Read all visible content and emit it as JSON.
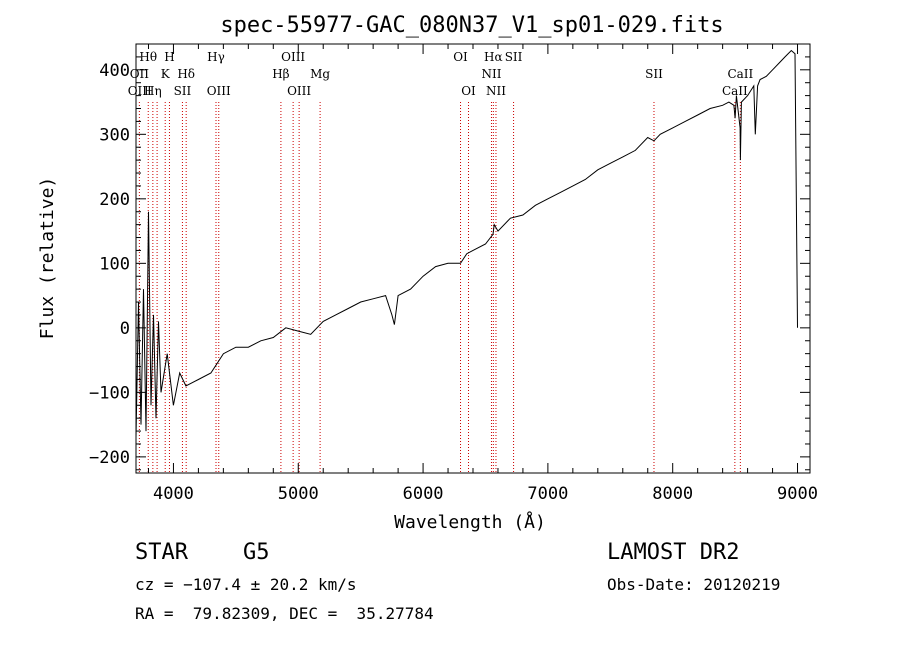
{
  "chart_data": {
    "type": "line",
    "title": "spec-55977-GAC_080N37_V1_sp01-029.fits",
    "xlabel": "Wavelength (Å)",
    "ylabel": "Flux (relative)",
    "xlim": [
      3700,
      9100
    ],
    "ylim": [
      -225,
      440
    ],
    "xticks": [
      4000,
      5000,
      6000,
      7000,
      8000,
      9000
    ],
    "xtick_labels": [
      "4000",
      "5000",
      "6000",
      "7000",
      "8000",
      "9000"
    ],
    "yticks": [
      -200,
      -100,
      0,
      100,
      200,
      300,
      400
    ],
    "ytick_labels": [
      "−200",
      "−100",
      "0",
      "100",
      "200",
      "300",
      "400"
    ],
    "grid": false,
    "series": [
      {
        "x": [
          3700,
          3720,
          3740,
          3760,
          3780,
          3800,
          3820,
          3840,
          3860,
          3880,
          3900,
          3950,
          4000,
          4050,
          4100,
          4200,
          4300,
          4400,
          4500,
          4600,
          4700,
          4800,
          4900,
          5000,
          5100,
          5200,
          5300,
          5400,
          5500,
          5600,
          5700,
          5750,
          5770,
          5800,
          5900,
          6000,
          6100,
          6200,
          6300,
          6350,
          6400,
          6500,
          6560,
          6570,
          6600,
          6700,
          6800,
          6900,
          7000,
          7100,
          7200,
          7300,
          7400,
          7500,
          7600,
          7700,
          7800,
          7850,
          7900,
          8000,
          8100,
          8200,
          8300,
          8400,
          8450,
          8490,
          8500,
          8510,
          8540,
          8542,
          8550,
          8600,
          8650,
          8662,
          8680,
          8700,
          8750,
          8800,
          8850,
          8900,
          8950,
          8980,
          9000
        ],
        "y": [
          -170,
          40,
          -150,
          60,
          -160,
          180,
          -120,
          20,
          -140,
          10,
          -100,
          -40,
          -120,
          -70,
          -90,
          -80,
          -70,
          -40,
          -30,
          -30,
          -20,
          -15,
          0,
          -5,
          -10,
          10,
          20,
          30,
          40,
          45,
          50,
          20,
          5,
          50,
          60,
          80,
          95,
          100,
          100,
          115,
          120,
          130,
          145,
          160,
          150,
          170,
          175,
          190,
          200,
          210,
          220,
          230,
          245,
          255,
          265,
          275,
          295,
          290,
          300,
          310,
          320,
          330,
          340,
          345,
          350,
          345,
          325,
          360,
          310,
          260,
          350,
          360,
          375,
          300,
          375,
          385,
          390,
          400,
          410,
          420,
          430,
          425,
          0
        ]
      }
    ],
    "line_labels": [
      {
        "label": "Hθ",
        "x": 3798,
        "row": 1
      },
      {
        "label": "OII",
        "x": 3727,
        "row": 2
      },
      {
        "label": "OIII",
        "x": 3730,
        "row": 3
      },
      {
        "label": "Hη",
        "x": 3835,
        "row": 3
      },
      {
        "label": "H",
        "x": 3968,
        "row": 1
      },
      {
        "label": "K",
        "x": 3934,
        "row": 2
      },
      {
        "label": "Hδ",
        "x": 4102,
        "row": 2
      },
      {
        "label": "SII",
        "x": 4072,
        "row": 3
      },
      {
        "label": "Hγ",
        "x": 4341,
        "row": 1
      },
      {
        "label": "OIII",
        "x": 4363,
        "row": 3
      },
      {
        "label": "OIII",
        "x": 4959,
        "row": 1
      },
      {
        "label": "Hβ",
        "x": 4861,
        "row": 2
      },
      {
        "label": "OIII",
        "x": 5007,
        "row": 3
      },
      {
        "label": "Mg",
        "x": 5175,
        "row": 2
      },
      {
        "label": "OI",
        "x": 6300,
        "row": 1
      },
      {
        "label": "OI",
        "x": 6364,
        "row": 3
      },
      {
        "label": "Hα",
        "x": 6563,
        "row": 1
      },
      {
        "label": "SII",
        "x": 6725,
        "row": 1
      },
      {
        "label": "NII",
        "x": 6548,
        "row": 2
      },
      {
        "label": "NII",
        "x": 6584,
        "row": 3
      },
      {
        "label": "SII",
        "x": 7850,
        "row": 2
      },
      {
        "label": "CaII",
        "x": 8542,
        "row": 2
      },
      {
        "label": "CaII",
        "x": 8498,
        "row": 3
      }
    ],
    "line_marks": [
      3727,
      3798,
      3835,
      3869,
      3934,
      3968,
      4072,
      4102,
      4341,
      4363,
      4861,
      4959,
      5007,
      5175,
      6300,
      6364,
      6548,
      6563,
      6584,
      6725,
      7850,
      8498,
      8542
    ]
  },
  "info": {
    "class": "STAR",
    "subclass": "G5",
    "survey": "LAMOST DR2",
    "cz": "cz = −107.4 ± 20.2 km/s",
    "obs_date": "Obs-Date: 20120219",
    "radec": "RA =  79.82309, DEC =  35.27784"
  },
  "colors": {
    "line_marks": "#cc0000",
    "spectrum": "#000000"
  }
}
